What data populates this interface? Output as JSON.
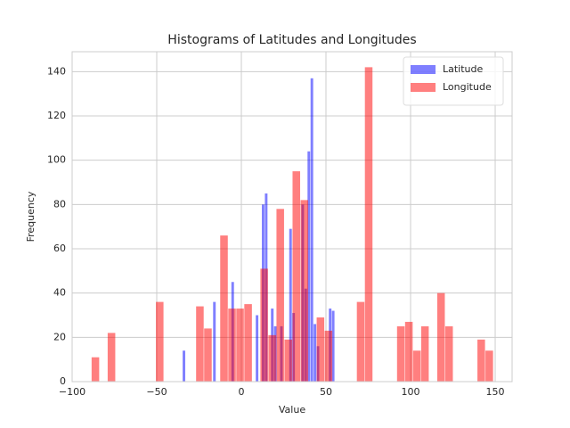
{
  "chart_data": {
    "type": "histogram",
    "title": "Histograms of Latitudes and Longitudes",
    "xlabel": "Value",
    "ylabel": "Frequency",
    "series": [
      {
        "name": "Latitude",
        "color": "#0000ff",
        "bins": [
          -34.7,
          -32.9,
          -31.1,
          -29.3,
          -27.5,
          -25.7,
          -23.9,
          -22.1,
          -20.3,
          -18.5,
          -16.7,
          -14.9,
          -13.1,
          -11.3,
          -9.5,
          -7.7,
          -5.9,
          -4.1,
          -2.3,
          -0.5,
          1.3,
          3.1,
          4.9,
          6.7,
          8.5,
          10.3,
          12.1,
          13.9,
          15.7,
          17.5,
          19.3,
          21.1,
          22.9,
          24.7,
          26.5,
          28.3,
          30.1,
          31.9,
          33.7,
          35.5,
          37.3,
          39.1,
          40.9,
          42.7,
          44.5,
          46.3,
          48.1,
          49.9,
          51.7,
          53.5,
          55.3
        ],
        "values": [
          14,
          0,
          0,
          0,
          0,
          0,
          0,
          0,
          0,
          0,
          36,
          0,
          0,
          0,
          0,
          0,
          45,
          0,
          0,
          0,
          0,
          0,
          0,
          0,
          30,
          0,
          80,
          85,
          0,
          33,
          25,
          0,
          25,
          0,
          0,
          69,
          31,
          0,
          0,
          80,
          42,
          104,
          137,
          26,
          16,
          0,
          0,
          0,
          33,
          32
        ]
      },
      {
        "name": "Longitude",
        "color": "#ff0000",
        "bins": [
          -88.5,
          -83.75,
          -79,
          -74.25,
          -69.5,
          -64.75,
          -60,
          -55.25,
          -50.5,
          -45.75,
          -41,
          -36.25,
          -31.5,
          -26.75,
          -22,
          -17.25,
          -12.5,
          -7.75,
          -3,
          1.75,
          6.5,
          11.25,
          16,
          20.75,
          25.5,
          30.25,
          35,
          39.75,
          44.5,
          49.25,
          54,
          58.75,
          63.5,
          68.25,
          73,
          77.75,
          82.5,
          87.25,
          92,
          96.75,
          101.5,
          106.25,
          111,
          115.75,
          120.5,
          125.25,
          130,
          134.75,
          139.5,
          144.25,
          149
        ],
        "values": [
          11,
          0,
          22,
          0,
          0,
          0,
          0,
          0,
          36,
          0,
          0,
          0,
          0,
          34,
          24,
          0,
          66,
          33,
          33,
          35,
          0,
          51,
          21,
          78,
          19,
          95,
          82,
          0,
          29,
          23,
          0,
          0,
          0,
          36,
          142,
          0,
          0,
          0,
          25,
          27,
          14,
          25,
          0,
          40,
          25,
          0,
          0,
          0,
          19,
          14
        ]
      }
    ],
    "alpha": 0.5,
    "xlim": [
      -100,
      160
    ],
    "xticks": [
      {
        "value": -100,
        "label": "−100"
      },
      {
        "value": -50,
        "label": "−50"
      },
      0,
      50,
      100,
      150
    ],
    "ylim": [
      0,
      149
    ],
    "yticks": [
      0,
      20,
      40,
      60,
      80,
      100,
      120,
      140
    ],
    "grid": true,
    "legend": "upper right"
  }
}
